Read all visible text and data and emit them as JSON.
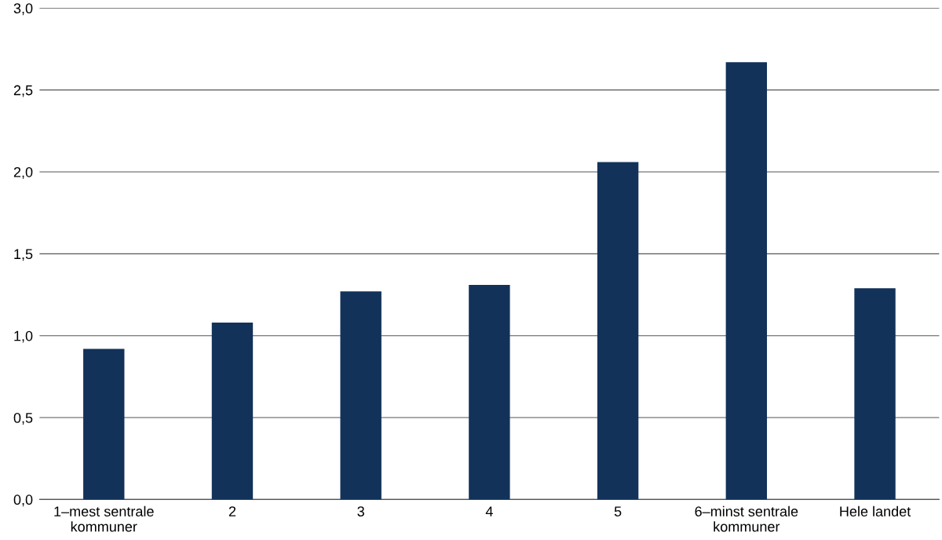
{
  "chart_data": {
    "type": "bar",
    "categories": [
      "1–mest sentrale\nkommuner",
      "2",
      "3",
      "4",
      "5",
      "6–minst sentrale\nkommuner",
      "Hele landet"
    ],
    "values": [
      0.92,
      1.08,
      1.27,
      1.31,
      2.06,
      2.67,
      1.29
    ],
    "color": "#12325a",
    "ylim": [
      0,
      3
    ],
    "yticks": [
      {
        "value": 0,
        "label": "0,0"
      },
      {
        "value": 0.5,
        "label": "0,5"
      },
      {
        "value": 1,
        "label": "1,0"
      },
      {
        "value": 1.5,
        "label": "1,5"
      },
      {
        "value": 2,
        "label": "2,0"
      },
      {
        "value": 2.5,
        "label": "2,5"
      },
      {
        "value": 3,
        "label": "3,0"
      }
    ],
    "grid": "y"
  }
}
